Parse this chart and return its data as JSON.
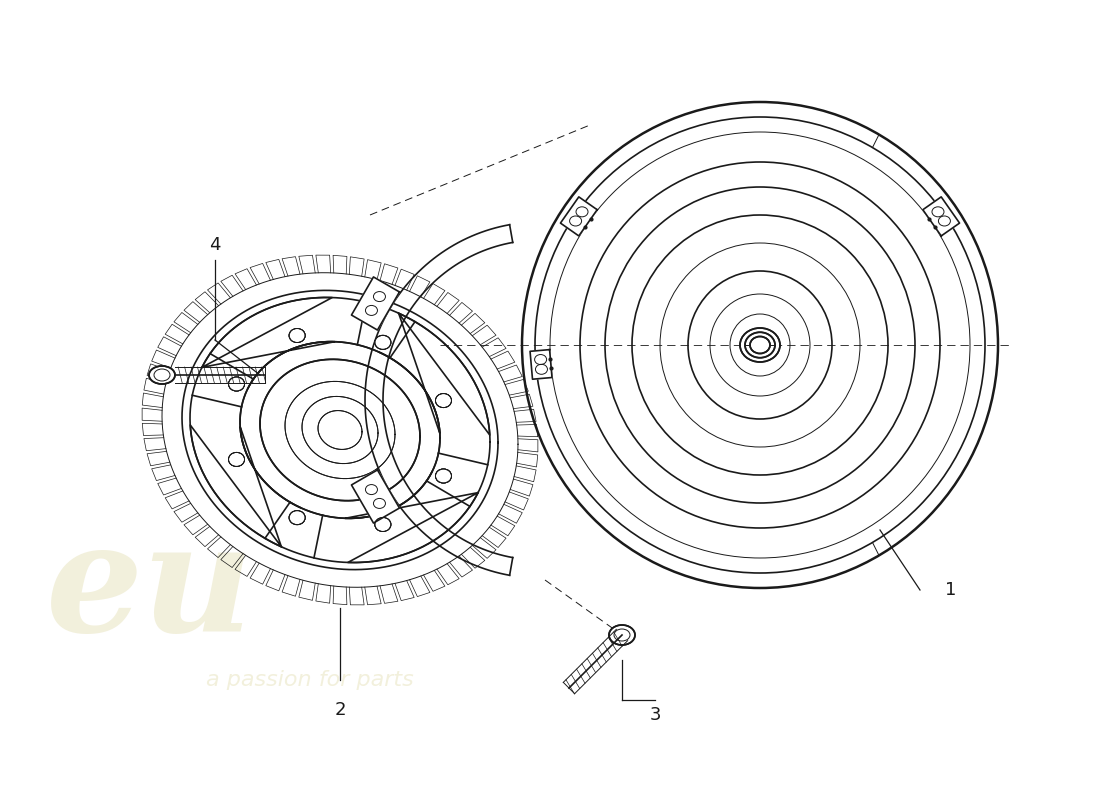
{
  "background_color": "#ffffff",
  "line_color": "#1a1a1a",
  "label1": "1",
  "label2": "2",
  "label3": "3",
  "label4": "4",
  "wm_color": "#e8e4c0",
  "wm_alpha": 0.55
}
